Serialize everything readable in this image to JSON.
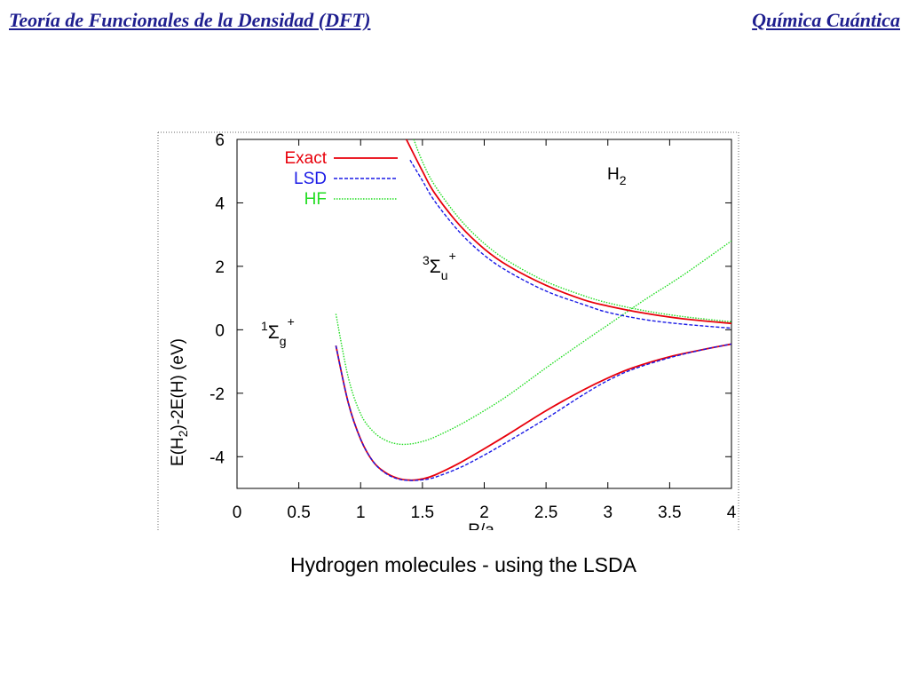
{
  "header": {
    "left_title": "Teoría de Funcionales de la Densidad (DFT)",
    "right_title": "Química Cuántica"
  },
  "caption": "Hydrogen molecules - using the LSDA",
  "chart_data": {
    "type": "line",
    "xlabel": "R/a",
    "ylabel": "E(H2)-2E(H) (eV)",
    "xlim": [
      0,
      4
    ],
    "ylim": [
      -5,
      6
    ],
    "x_ticks": [
      "0",
      "0.5",
      "1",
      "1.5",
      "2",
      "2.5",
      "3",
      "3.5",
      "4"
    ],
    "y_ticks": [
      "-4",
      "-2",
      "0",
      "2",
      "4",
      "6"
    ],
    "grid": false,
    "legend_position": "top-left",
    "legend": [
      "Exact",
      "LSD",
      "HF"
    ],
    "annotations": [
      {
        "text": "H2",
        "base": "H",
        "sub": "2"
      },
      {
        "text": "3Σu+",
        "sup1": "3",
        "base": "Σ",
        "sub": "u",
        "sup2": "+"
      },
      {
        "text": "1Σg+",
        "sup1": "1",
        "base": "Σ",
        "sub": "g",
        "sup2": "+"
      }
    ],
    "series": [
      {
        "name": "Exact",
        "state": "1Σg+",
        "color": "#e8000b",
        "dash": "solid",
        "x": [
          0.8,
          0.9,
          1.0,
          1.1,
          1.2,
          1.3,
          1.4,
          1.5,
          1.6,
          1.8,
          2.0,
          2.2,
          2.5,
          2.8,
          3.0,
          3.2,
          3.5,
          3.8,
          4.0
        ],
        "y": [
          -0.5,
          -2.3,
          -3.45,
          -4.15,
          -4.5,
          -4.68,
          -4.74,
          -4.7,
          -4.58,
          -4.2,
          -3.75,
          -3.28,
          -2.55,
          -1.9,
          -1.52,
          -1.2,
          -0.85,
          -0.6,
          -0.45
        ]
      },
      {
        "name": "LSD",
        "state": "1Σg+",
        "color": "#1a1ae6",
        "dash": "dashed",
        "x": [
          0.8,
          0.9,
          1.0,
          1.1,
          1.2,
          1.3,
          1.4,
          1.5,
          1.6,
          1.8,
          2.0,
          2.2,
          2.5,
          2.8,
          3.0,
          3.2,
          3.5,
          3.8,
          4.0
        ],
        "y": [
          -0.5,
          -2.3,
          -3.45,
          -4.15,
          -4.52,
          -4.7,
          -4.75,
          -4.73,
          -4.65,
          -4.35,
          -3.95,
          -3.5,
          -2.8,
          -2.05,
          -1.6,
          -1.25,
          -0.88,
          -0.6,
          -0.45
        ]
      },
      {
        "name": "HF",
        "state": "1Σg+",
        "color": "#22dd22",
        "dash": "dotted",
        "x": [
          0.8,
          0.9,
          1.0,
          1.1,
          1.2,
          1.3,
          1.4,
          1.5,
          1.6,
          1.8,
          2.0,
          2.2,
          2.5,
          2.8,
          3.0,
          3.3,
          3.6,
          4.0
        ],
        "y": [
          0.5,
          -1.5,
          -2.65,
          -3.2,
          -3.48,
          -3.6,
          -3.6,
          -3.52,
          -3.38,
          -3.0,
          -2.55,
          -2.05,
          -1.2,
          -0.38,
          0.15,
          0.95,
          1.7,
          2.8
        ]
      },
      {
        "name": "Exact",
        "state": "3Σu+",
        "color": "#e8000b",
        "dash": "solid",
        "x": [
          1.37,
          1.5,
          1.6,
          1.8,
          2.0,
          2.2,
          2.5,
          2.8,
          3.0,
          3.3,
          3.6,
          4.0
        ],
        "y": [
          6.0,
          5.0,
          4.3,
          3.3,
          2.55,
          2.0,
          1.4,
          0.95,
          0.75,
          0.52,
          0.35,
          0.2
        ]
      },
      {
        "name": "LSD",
        "state": "3Σu+",
        "color": "#1a1ae6",
        "dash": "dashed",
        "x": [
          1.4,
          1.5,
          1.6,
          1.8,
          2.0,
          2.2,
          2.5,
          2.8,
          3.0,
          3.3,
          3.6,
          4.0
        ],
        "y": [
          5.35,
          4.7,
          4.05,
          3.08,
          2.35,
          1.82,
          1.22,
          0.8,
          0.55,
          0.32,
          0.18,
          0.05
        ]
      },
      {
        "name": "HF",
        "state": "3Σu+",
        "color": "#22dd22",
        "dash": "dotted",
        "x": [
          1.43,
          1.5,
          1.6,
          1.8,
          2.0,
          2.2,
          2.5,
          2.8,
          3.0,
          3.3,
          3.6,
          4.0
        ],
        "y": [
          6.0,
          5.3,
          4.55,
          3.5,
          2.72,
          2.15,
          1.52,
          1.08,
          0.85,
          0.6,
          0.42,
          0.25
        ]
      }
    ]
  }
}
